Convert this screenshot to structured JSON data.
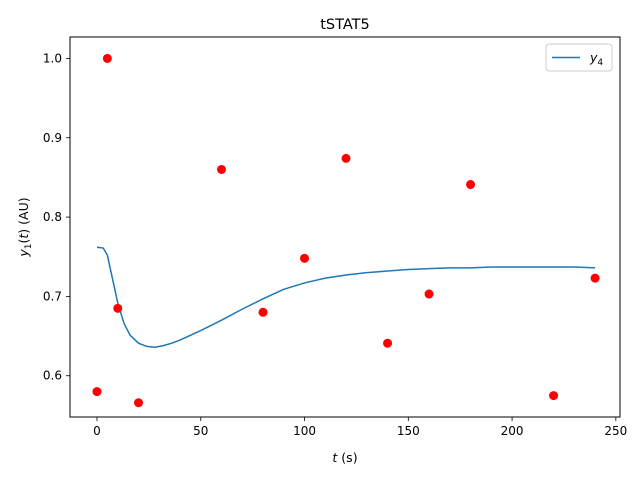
{
  "chart_data": {
    "type": "line",
    "title": "tSTAT5",
    "xlabel": "t (s)",
    "ylabel": "y₁(t) (AU)",
    "xlim": [
      -13,
      252
    ],
    "ylim": [
      0.548,
      1.027
    ],
    "x_ticks": [
      0,
      50,
      100,
      150,
      200,
      250
    ],
    "y_ticks": [
      0.6,
      0.7,
      0.8,
      0.9,
      1.0
    ],
    "x_tick_labels": [
      "0",
      "50",
      "100",
      "150",
      "200",
      "250"
    ],
    "y_tick_labels": [
      "0.6",
      "0.7",
      "0.8",
      "0.9",
      "1.0"
    ],
    "grid": false,
    "legend_position": "top-right",
    "series": [
      {
        "name": "y₄",
        "kind": "line",
        "color": "#1f77b4",
        "x": [
          0,
          3,
          5,
          7,
          10,
          13,
          16,
          20,
          24,
          28,
          32,
          36,
          40,
          50,
          60,
          70,
          80,
          90,
          100,
          110,
          120,
          130,
          140,
          150,
          160,
          170,
          180,
          190,
          200,
          210,
          220,
          230,
          240
        ],
        "y": [
          0.762,
          0.761,
          0.752,
          0.728,
          0.692,
          0.666,
          0.651,
          0.641,
          0.637,
          0.636,
          0.638,
          0.641,
          0.645,
          0.657,
          0.67,
          0.684,
          0.697,
          0.709,
          0.717,
          0.723,
          0.727,
          0.73,
          0.732,
          0.734,
          0.735,
          0.736,
          0.736,
          0.737,
          0.737,
          0.737,
          0.737,
          0.737,
          0.736
        ]
      },
      {
        "kind": "scatter",
        "color": "#ff0000",
        "x": [
          0,
          5,
          10,
          20,
          60,
          80,
          100,
          120,
          140,
          160,
          180,
          220,
          240
        ],
        "y": [
          0.58,
          1.0,
          0.685,
          0.566,
          0.86,
          0.68,
          0.748,
          0.874,
          0.641,
          0.703,
          0.841,
          0.575,
          0.723
        ]
      }
    ]
  }
}
